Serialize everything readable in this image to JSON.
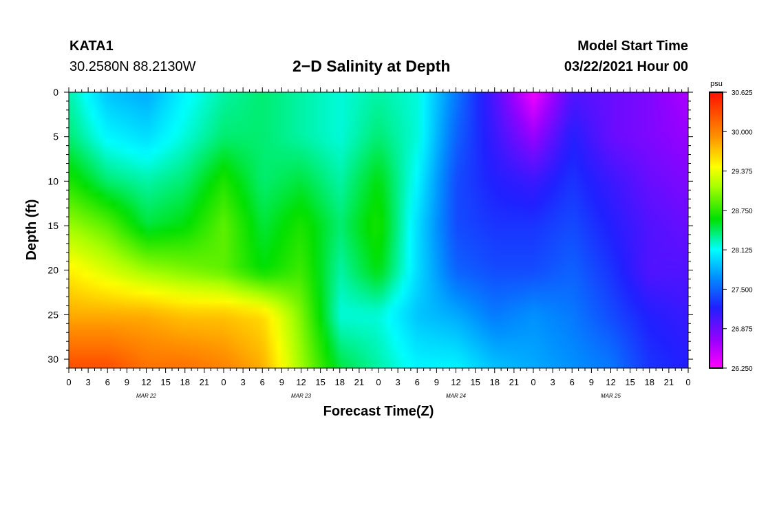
{
  "header": {
    "station": "KATA1",
    "coordinates": "30.2580N 88.2130W",
    "title": "2−D Salinity at Depth",
    "model_start_label": "Model Start Time",
    "model_start_value": "03/22/2021 Hour 00"
  },
  "chart_data": {
    "type": "heatmap",
    "title": "2−D Salinity at Depth",
    "xlabel": "Forecast Time(Z)",
    "ylabel": "Depth (ft)",
    "x_ticks": [
      "0",
      "3",
      "6",
      "9",
      "12",
      "15",
      "18",
      "21",
      "0",
      "3",
      "6",
      "9",
      "12",
      "15",
      "18",
      "21",
      "0",
      "3",
      "6",
      "9",
      "12",
      "15",
      "18",
      "21",
      "0",
      "3",
      "6",
      "9",
      "12",
      "15",
      "18",
      "21",
      "0"
    ],
    "date_labels": [
      {
        "label": "MAR 22",
        "hour": 12
      },
      {
        "label": "MAR 23",
        "hour": 36
      },
      {
        "label": "MAR 24",
        "hour": 60
      },
      {
        "label": "MAR 25",
        "hour": 84
      }
    ],
    "x_range_hours": [
      0,
      96
    ],
    "y_ticks": [
      0,
      5,
      10,
      15,
      20,
      25,
      30
    ],
    "ylim": [
      31,
      0
    ],
    "colorbar": {
      "unit": "psu",
      "range": [
        26.25,
        30.625
      ],
      "tick_labels": [
        "30.625",
        "30.000",
        "29.375",
        "28.750",
        "28.125",
        "27.500",
        "26.875",
        "26.250"
      ],
      "tick_values": [
        30.625,
        30.0,
        29.375,
        28.75,
        28.125,
        27.5,
        26.875,
        26.25
      ]
    },
    "grid_hours": [
      0,
      6,
      12,
      18,
      24,
      30,
      36,
      42,
      48,
      54,
      60,
      66,
      72,
      78,
      84,
      90,
      96
    ],
    "grid_depths": [
      0,
      5,
      10,
      15,
      20,
      25,
      31
    ],
    "salinity": [
      [
        28.3,
        27.9,
        27.8,
        28.1,
        28.3,
        28.4,
        28.3,
        28.2,
        28.3,
        28.2,
        27.6,
        27.0,
        26.3,
        27.0,
        26.9,
        26.8,
        26.6
      ],
      [
        28.4,
        28.1,
        28.0,
        28.2,
        28.4,
        28.4,
        28.3,
        28.2,
        28.4,
        28.2,
        27.5,
        27.1,
        26.7,
        27.2,
        26.9,
        26.8,
        26.7
      ],
      [
        28.7,
        28.4,
        28.3,
        28.4,
        28.7,
        28.4,
        28.5,
        28.3,
        28.6,
        28.1,
        27.4,
        27.2,
        27.1,
        27.3,
        27.1,
        26.9,
        26.8
      ],
      [
        29.1,
        28.9,
        28.5,
        28.6,
        28.9,
        28.5,
        28.7,
        28.4,
        28.7,
        28.0,
        27.4,
        27.3,
        27.3,
        27.4,
        27.2,
        27.0,
        26.9
      ],
      [
        29.5,
        29.3,
        29.1,
        29.0,
        28.9,
        28.6,
        28.8,
        28.3,
        28.6,
        28.0,
        27.5,
        27.4,
        27.4,
        27.5,
        27.3,
        27.0,
        27.0
      ],
      [
        29.8,
        29.8,
        29.8,
        29.7,
        29.7,
        29.6,
        29.0,
        28.2,
        28.2,
        27.9,
        27.8,
        27.6,
        27.7,
        27.6,
        27.4,
        27.2,
        27.1
      ],
      [
        30.3,
        30.3,
        30.1,
        30.1,
        30.0,
        29.8,
        29.1,
        28.5,
        28.3,
        28.1,
        28.1,
        27.9,
        27.8,
        27.7,
        27.6,
        27.3,
        27.2
      ]
    ]
  }
}
